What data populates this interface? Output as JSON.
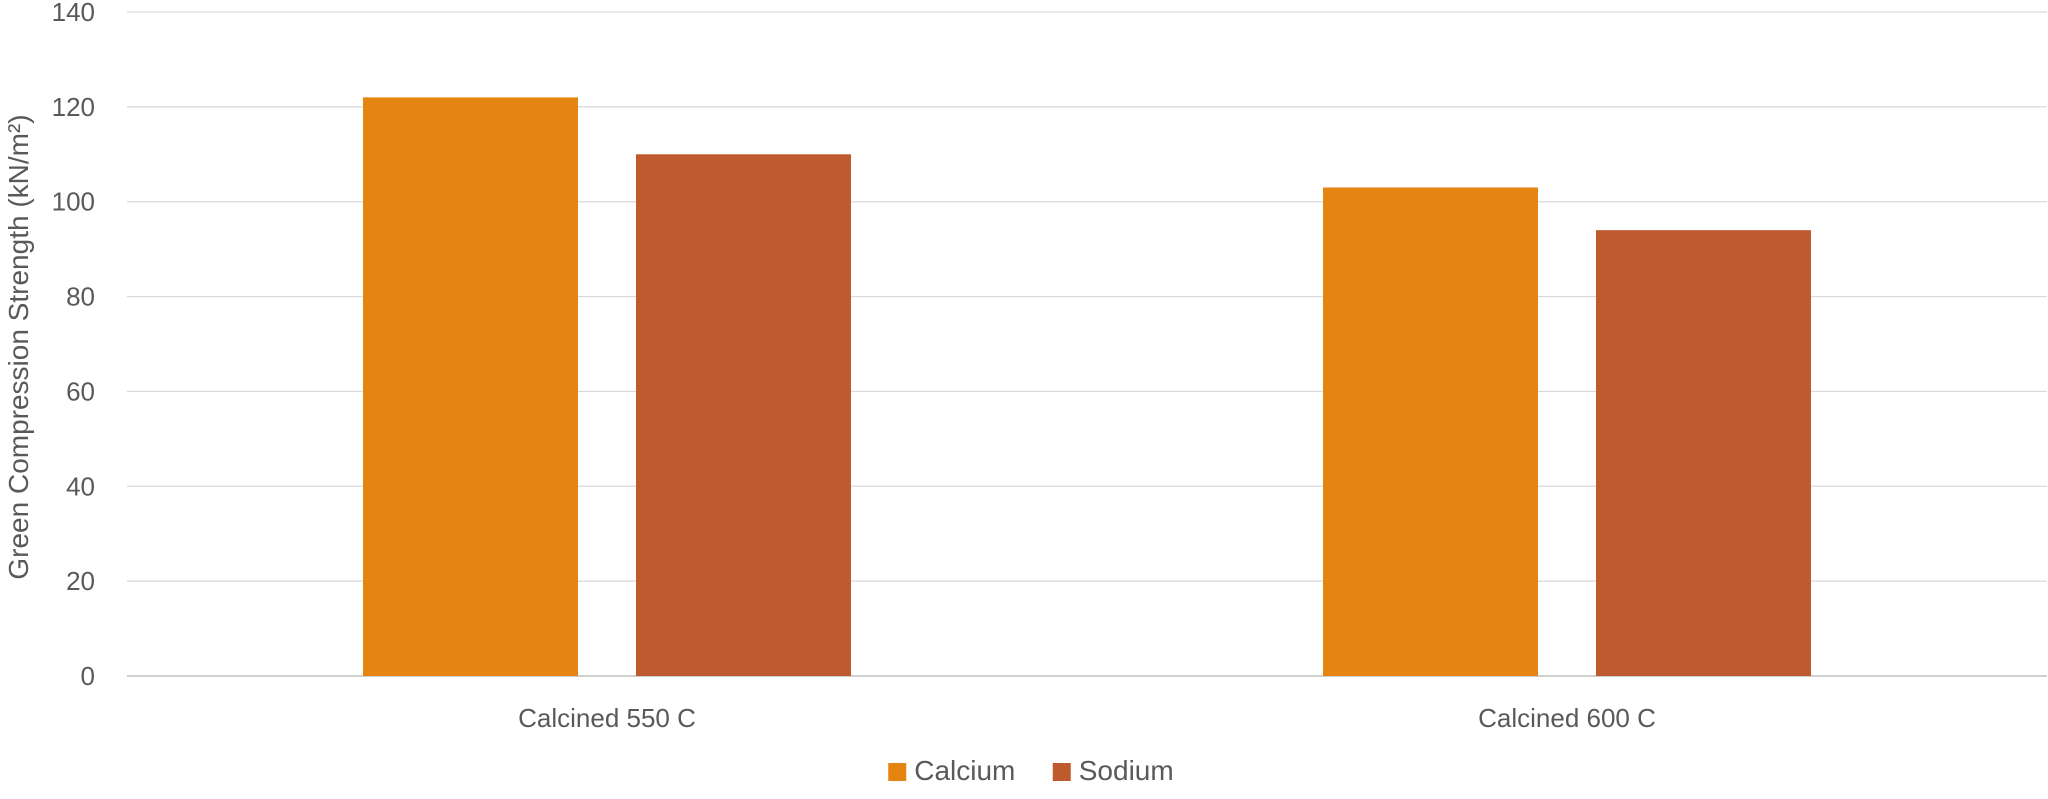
{
  "chart_data": {
    "type": "bar",
    "title": "",
    "xlabel": "",
    "ylabel": "Green Compression Strength (kN/m²)",
    "ylim": [
      0,
      140
    ],
    "ytick_step": 20,
    "yticks": [
      "0",
      "20",
      "40",
      "60",
      "80",
      "100",
      "120",
      "140"
    ],
    "grid": true,
    "legend_position": "bottom",
    "categories": [
      "Calcined 550 C",
      "Calcined 600 C"
    ],
    "series": [
      {
        "name": "Calcium",
        "color": "#E58411",
        "values": [
          122,
          103
        ]
      },
      {
        "name": "Sodium",
        "color": "#BE5A2D",
        "values": [
          110,
          94
        ]
      }
    ]
  }
}
